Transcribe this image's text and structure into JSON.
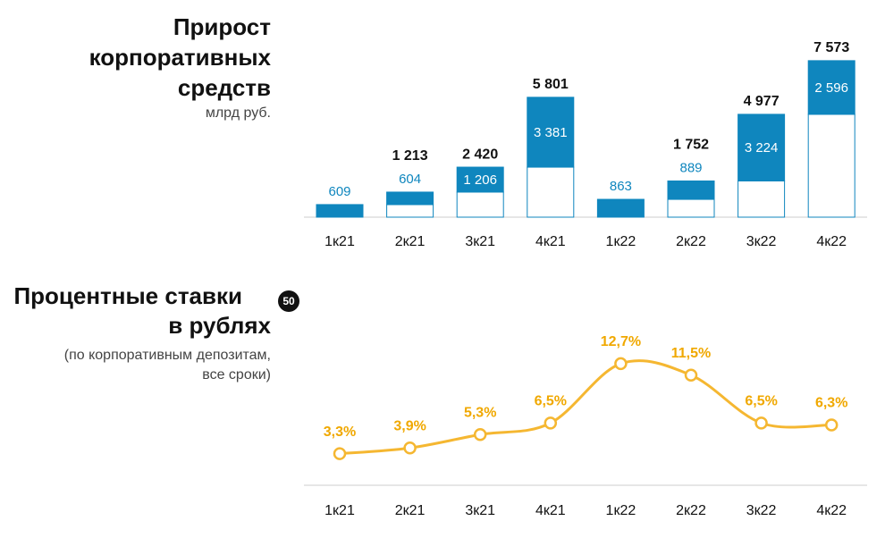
{
  "chart_data": [
    {
      "type": "bar",
      "stacked": true,
      "title": [
        "Прирост",
        "корпоративных",
        "средств"
      ],
      "subtitle": "млрд руб.",
      "categories": [
        "1к21",
        "2к21",
        "3к21",
        "4к21",
        "1к22",
        "2к22",
        "3к22",
        "4к22"
      ],
      "series": [
        {
          "color": "#ffffff",
          "values": [
            null,
            609,
            1214,
            2420,
            null,
            863,
            1753,
            4977
          ]
        },
        {
          "color": "#0f86be",
          "values": [
            609,
            604,
            1206,
            3381,
            863,
            889,
            3224,
            2596
          ],
          "value_labels": [
            "609",
            "604",
            "1 206",
            "3 381",
            "863",
            "889",
            "3 224",
            "2 596"
          ]
        }
      ],
      "totals": [
        null,
        1213,
        2420,
        5801,
        null,
        1752,
        4977,
        7573
      ],
      "total_labels": [
        null,
        "1 213",
        "2 420",
        "5 801",
        null,
        "1 752",
        "4 977",
        "7 573"
      ],
      "ylim": [
        0,
        8000
      ]
    },
    {
      "type": "line",
      "title": [
        "Процентные ставки",
        "в рублях"
      ],
      "badge": "50",
      "subtitle": [
        "(по корпоративным депозитам,",
        "все сроки)"
      ],
      "categories": [
        "1к21",
        "2к21",
        "3к21",
        "4к21",
        "1к22",
        "2к22",
        "3к22",
        "4к22"
      ],
      "series": [
        {
          "color": "#f5b731",
          "values": [
            3.3,
            3.9,
            5.3,
            6.5,
            12.7,
            11.5,
            6.5,
            6.3
          ],
          "value_labels": [
            "3,3%",
            "3,9%",
            "5,3%",
            "6,5%",
            "12,7%",
            "11,5%",
            "6,5%",
            "6,3%"
          ]
        }
      ],
      "ylim": [
        0,
        14
      ]
    }
  ]
}
